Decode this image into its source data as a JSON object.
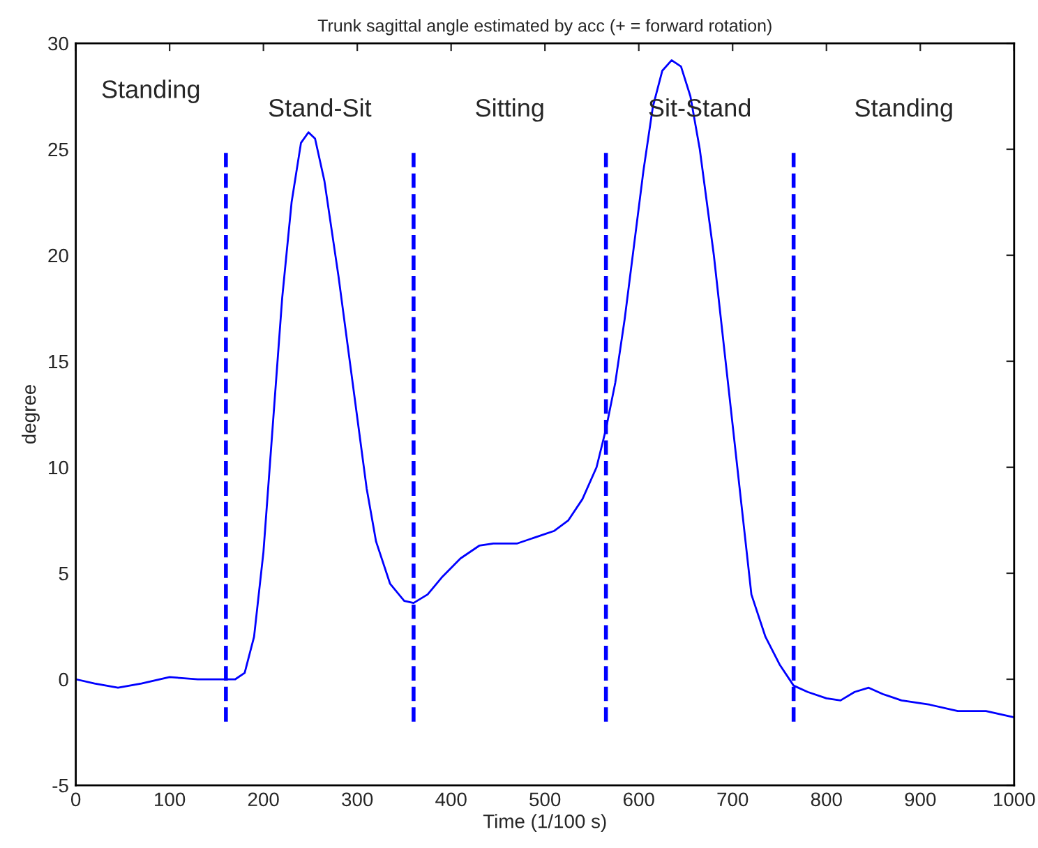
{
  "chart_data": {
    "type": "line",
    "title": "Trunk sagittal angle estimated by acc (+ = forward rotation)",
    "xlabel": "Time (1/100 s)",
    "ylabel": "degree",
    "xlim": [
      0,
      1000
    ],
    "ylim": [
      -5,
      30
    ],
    "xticks": [
      0,
      100,
      200,
      300,
      400,
      500,
      600,
      700,
      800,
      900,
      1000
    ],
    "yticks": [
      -5,
      0,
      5,
      10,
      15,
      20,
      25,
      30
    ],
    "grid": false,
    "legend": false,
    "series": [
      {
        "color": "#0000ff",
        "line_style": "solid",
        "x": [
          0,
          20,
          45,
          70,
          100,
          130,
          150,
          170,
          180,
          190,
          200,
          210,
          220,
          230,
          240,
          248,
          255,
          265,
          280,
          295,
          310,
          320,
          335,
          350,
          360,
          375,
          390,
          410,
          430,
          445,
          470,
          490,
          510,
          525,
          540,
          555,
          565,
          575,
          585,
          595,
          605,
          615,
          625,
          635,
          645,
          655,
          665,
          680,
          695,
          710,
          720,
          735,
          750,
          765,
          780,
          800,
          815,
          830,
          845,
          860,
          880,
          910,
          940,
          970,
          1000
        ],
        "values": [
          0,
          -0.2,
          -0.4,
          -0.2,
          0.1,
          0,
          0,
          0,
          0.3,
          2,
          6,
          12,
          18,
          22.5,
          25.3,
          25.8,
          25.5,
          23.5,
          19,
          14,
          9,
          6.5,
          4.5,
          3.7,
          3.6,
          4,
          4.8,
          5.7,
          6.3,
          6.4,
          6.4,
          6.7,
          7,
          7.5,
          8.5,
          10,
          11.8,
          14,
          17,
          20.5,
          24,
          27,
          28.7,
          29.2,
          28.9,
          27.5,
          25,
          20,
          14,
          8,
          4,
          2,
          0.7,
          -0.3,
          -0.6,
          -0.9,
          -1.0,
          -0.6,
          -0.4,
          -0.7,
          -1.0,
          -1.2,
          -1.5,
          -1.5,
          -1.8
        ]
      },
      {
        "color": "#0000ff",
        "line_style": "dashed",
        "x": [
          160,
          160
        ],
        "values": [
          -2,
          25
        ]
      },
      {
        "color": "#0000ff",
        "line_style": "dashed",
        "x": [
          360,
          360
        ],
        "values": [
          -2,
          25
        ]
      },
      {
        "color": "#0000ff",
        "line_style": "dashed",
        "x": [
          565,
          565
        ],
        "values": [
          -2,
          25
        ]
      },
      {
        "color": "#0000ff",
        "line_style": "dashed",
        "x": [
          765,
          765
        ],
        "values": [
          -2,
          25
        ]
      }
    ],
    "annotations": [
      "Standing",
      "Stand-Sit",
      "Sitting",
      "Sit-Stand",
      "Standing"
    ]
  }
}
